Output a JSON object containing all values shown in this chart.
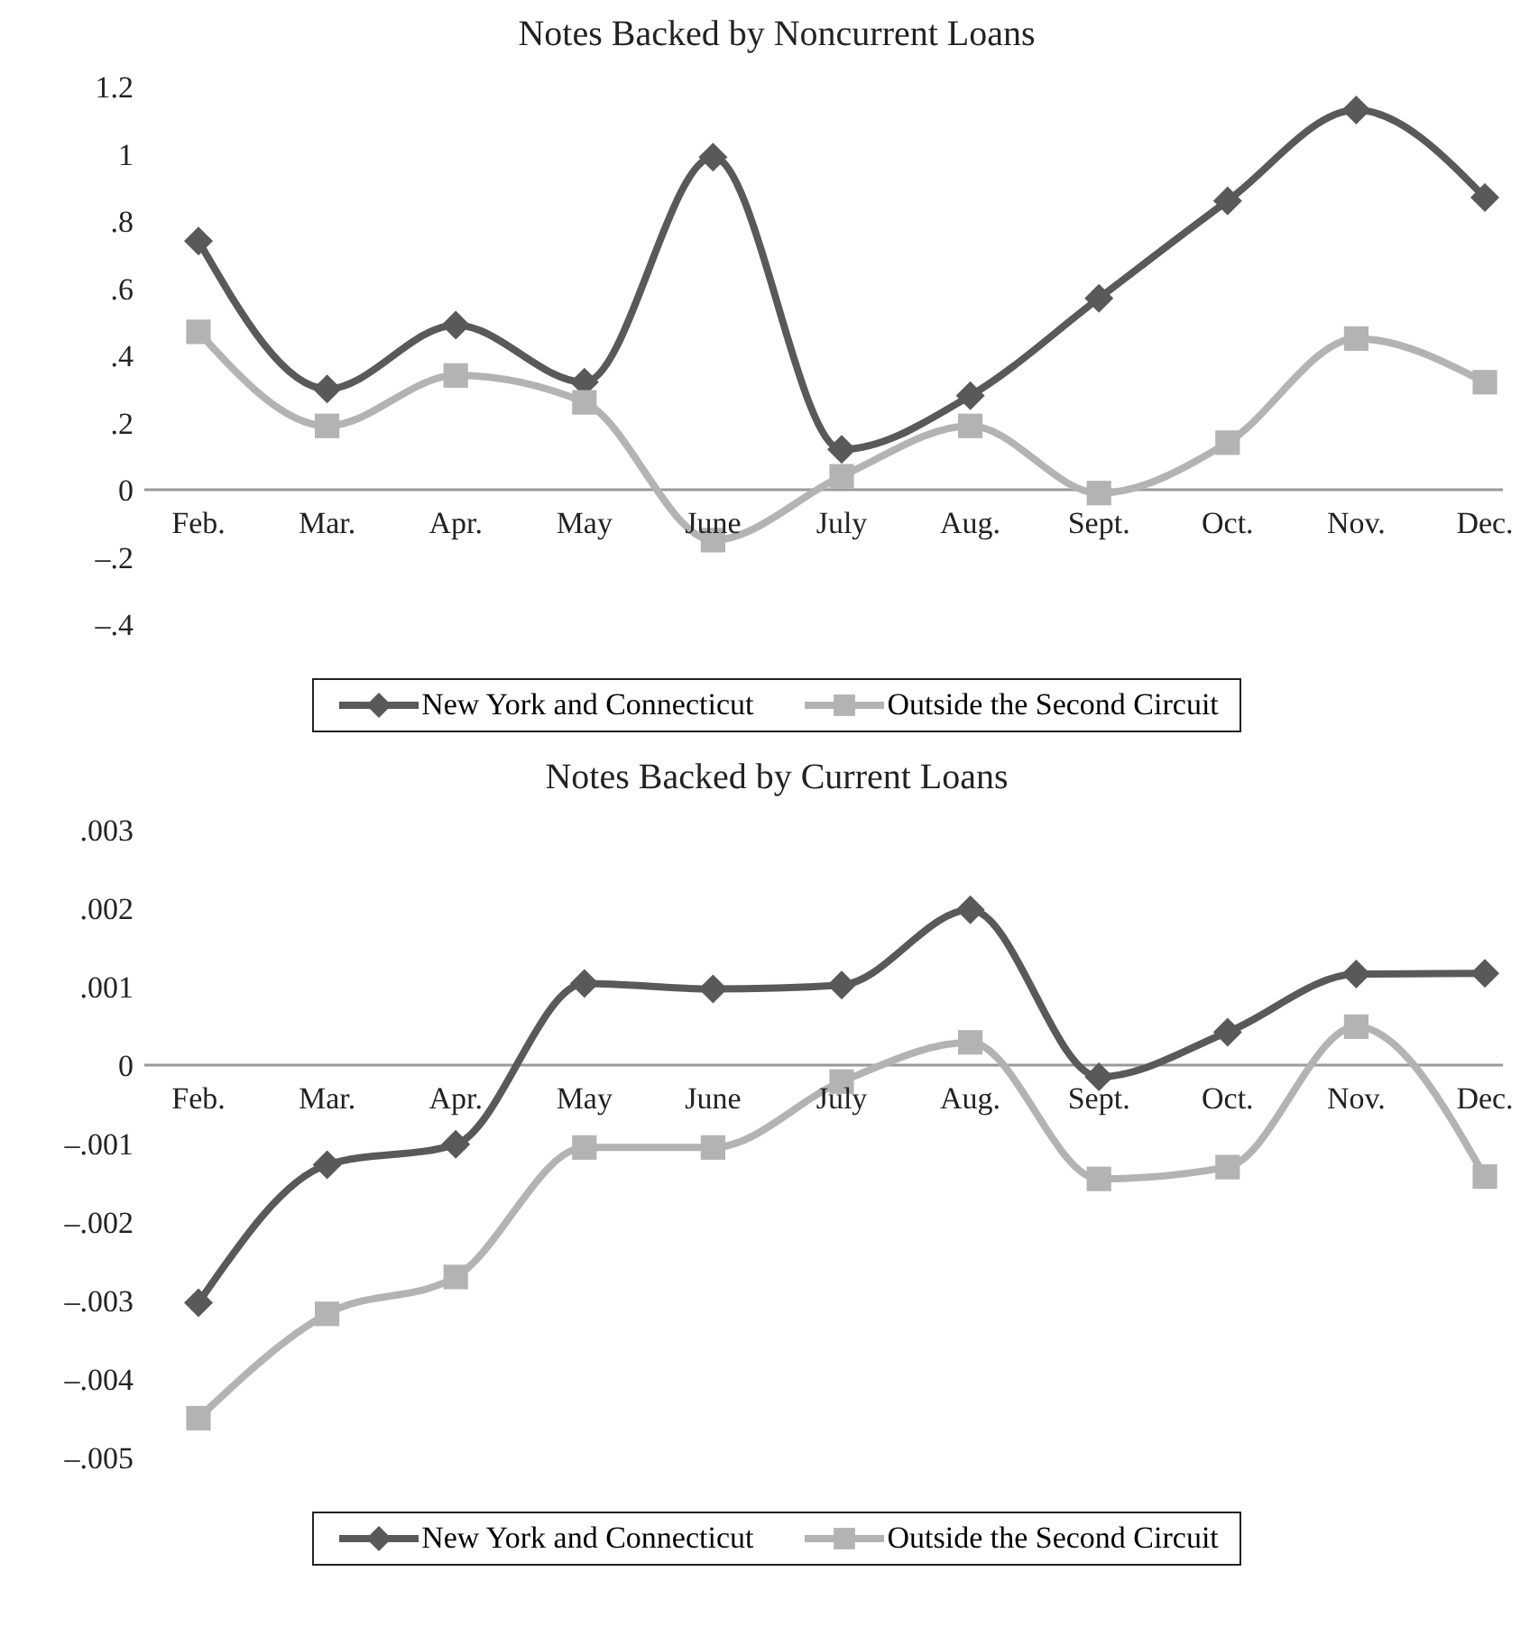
{
  "chart_data": [
    {
      "type": "line",
      "title": "Notes Backed by Noncurrent Loans",
      "categories": [
        "Feb.",
        "Mar.",
        "Apr.",
        "May",
        "June",
        "July",
        "Aug.",
        "Sept.",
        "Oct.",
        "Nov.",
        "Dec."
      ],
      "series": [
        {
          "name": "New York and Connecticut",
          "color": "#595959",
          "marker": "diamond",
          "values": [
            0.74,
            0.3,
            0.49,
            0.32,
            0.99,
            0.12,
            0.28,
            0.57,
            0.86,
            1.13,
            0.87
          ]
        },
        {
          "name": "Outside the Second Circuit",
          "color": "#b3b3b3",
          "marker": "square",
          "values": [
            0.47,
            0.19,
            0.34,
            0.26,
            -0.15,
            0.04,
            0.19,
            -0.01,
            0.14,
            0.45,
            0.32
          ]
        }
      ],
      "ylim": [
        -0.4,
        1.2
      ],
      "yticks": [
        {
          "value": 1.2,
          "label": "1.2"
        },
        {
          "value": 1,
          "label": "1"
        },
        {
          "value": 0.8,
          "label": ".8"
        },
        {
          "value": 0.6,
          "label": ".6"
        },
        {
          "value": 0.4,
          "label": ".4"
        },
        {
          "value": 0.2,
          "label": ".2"
        },
        {
          "value": 0,
          "label": "0"
        },
        {
          "value": -0.2,
          "label": "–.2"
        },
        {
          "value": -0.4,
          "label": "–.4"
        }
      ],
      "grid": false,
      "legend": "bottom",
      "line_style": "solid"
    },
    {
      "type": "line",
      "title": "Notes Backed by Current Loans",
      "categories": [
        "Feb.",
        "Mar.",
        "Apr.",
        "May",
        "June",
        "July",
        "Aug.",
        "Sept.",
        "Oct.",
        "Nov.",
        "Dec."
      ],
      "series": [
        {
          "name": "New York and Connecticut",
          "color": "#595959",
          "marker": "diamond",
          "values": [
            -0.00303,
            -0.00127,
            -0.00101,
            0.00104,
            0.00097,
            0.00102,
            0.00198,
            -0.00015,
            0.00042,
            0.00116,
            0.00117
          ]
        },
        {
          "name": "Outside the Second Circuit",
          "color": "#b3b3b3",
          "marker": "square",
          "values": [
            -0.0045,
            -0.00317,
            -0.0027,
            -0.00105,
            -0.00105,
            -0.00021,
            0.00029,
            -0.00145,
            -0.0013,
            0.00049,
            -0.00142
          ]
        }
      ],
      "ylim": [
        -0.005,
        0.003
      ],
      "yticks": [
        {
          "value": 0.003,
          "label": ".003"
        },
        {
          "value": 0.002,
          "label": ".002"
        },
        {
          "value": 0.001,
          "label": ".001"
        },
        {
          "value": 0,
          "label": "0"
        },
        {
          "value": -0.001,
          "label": "–.001"
        },
        {
          "value": -0.002,
          "label": "–.002"
        },
        {
          "value": -0.003,
          "label": "–.003"
        },
        {
          "value": -0.004,
          "label": "–.004"
        },
        {
          "value": -0.005,
          "label": "–.005"
        }
      ],
      "grid": false,
      "legend": "bottom",
      "line_style": "solid"
    }
  ]
}
